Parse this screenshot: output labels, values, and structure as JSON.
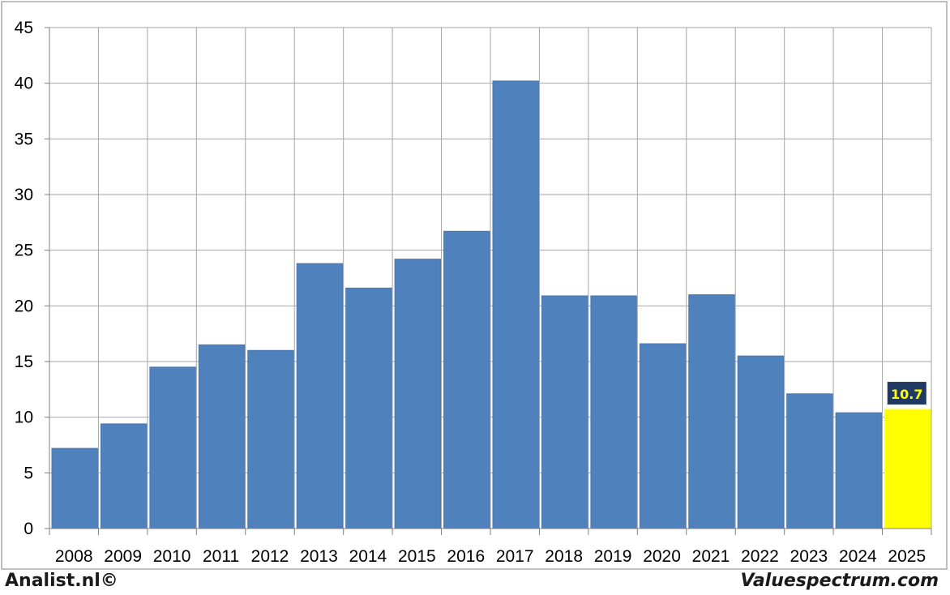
{
  "chart_data": {
    "type": "bar",
    "categories": [
      "2008",
      "2009",
      "2010",
      "2011",
      "2012",
      "2013",
      "2014",
      "2015",
      "2016",
      "2017",
      "2018",
      "2019",
      "2020",
      "2021",
      "2022",
      "2023",
      "2024",
      "2025"
    ],
    "values": [
      7.2,
      9.4,
      14.5,
      16.5,
      16.0,
      23.8,
      21.6,
      24.2,
      26.7,
      40.2,
      20.9,
      20.9,
      16.6,
      21.0,
      15.5,
      12.1,
      10.4,
      10.7
    ],
    "highlight_index": 17,
    "highlight_label": "10.7",
    "ylim": [
      0,
      45
    ],
    "yticks": [
      0,
      5,
      10,
      15,
      20,
      25,
      30,
      35,
      40,
      45
    ],
    "grid": true,
    "colors": {
      "bar": "#4f81bd",
      "highlight_bar": "#ffff00",
      "label_bg": "#1f3864",
      "label_text": "#ffff00",
      "grid": "#a6a6a6"
    }
  },
  "footer": {
    "left": "Analist.nl©",
    "right": "Valuespectrum.com"
  }
}
